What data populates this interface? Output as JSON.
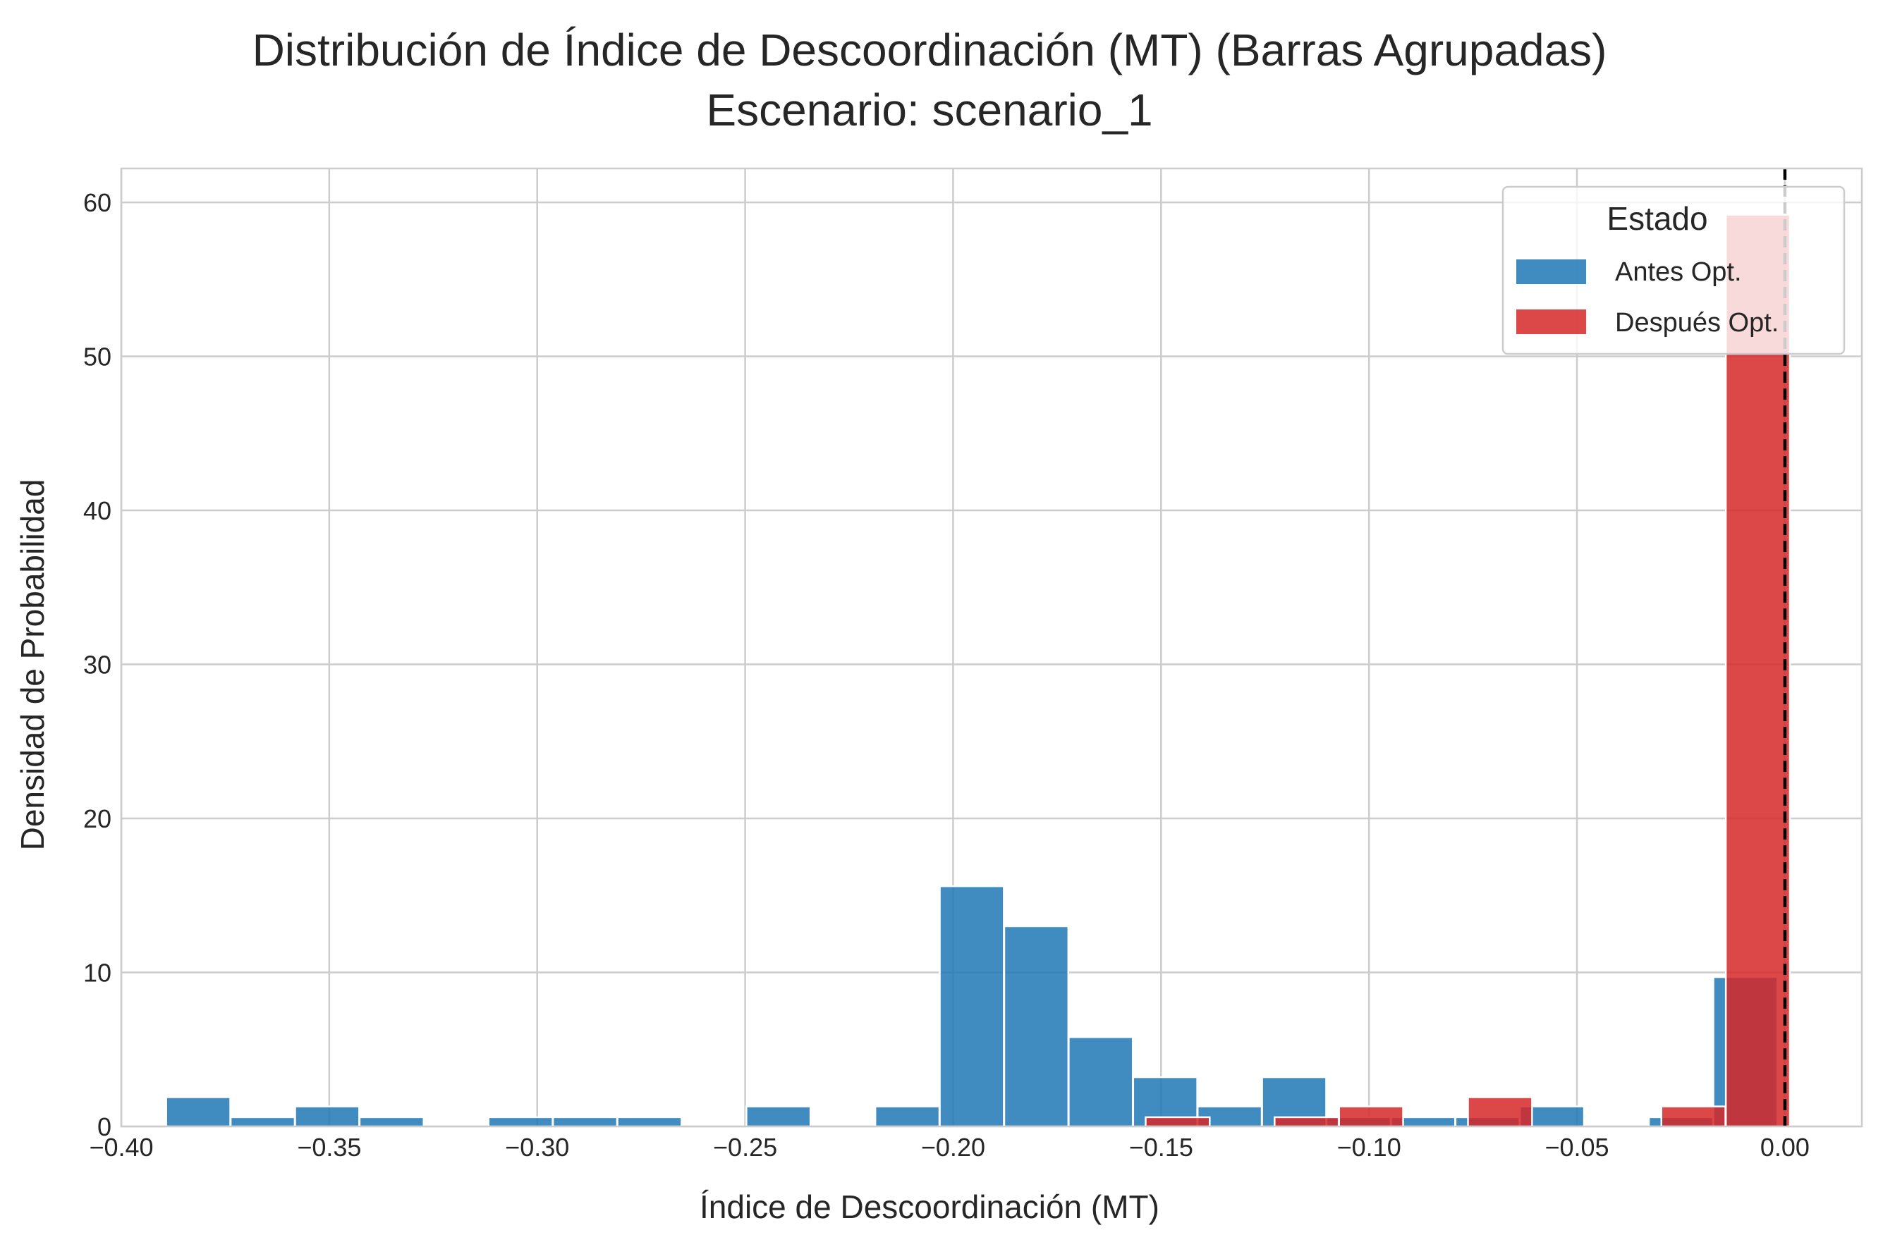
{
  "chart_data": {
    "type": "bar",
    "title": "Distribución de Índice de Descoordinación (MT) (Barras Agrupadas)",
    "subtitle": "Escenario: scenario_1",
    "xlabel": "Índice de Descoordinación (MT)",
    "ylabel": "Densidad de Probabilidad",
    "xlim": [
      -0.4,
      0.0185
    ],
    "ylim": [
      0,
      62.2
    ],
    "xticks": [
      -0.4,
      -0.35,
      -0.3,
      -0.25,
      -0.2,
      -0.15,
      -0.1,
      -0.05,
      0.0
    ],
    "xtick_labels": [
      "−0.40",
      "−0.35",
      "−0.30",
      "−0.25",
      "−0.20",
      "−0.15",
      "−0.10",
      "−0.05",
      "0.00"
    ],
    "yticks": [
      0,
      10,
      20,
      30,
      40,
      50,
      60
    ],
    "ytick_labels": [
      "0",
      "10",
      "20",
      "30",
      "40",
      "50",
      "60"
    ],
    "grid": true,
    "bin_width": 0.0154,
    "reference_line": {
      "x": 0.0,
      "style": "dashed",
      "color": "#000000"
    },
    "legend": {
      "title": "Estado",
      "position": "top-right"
    },
    "series": [
      {
        "name": "Antes Opt.",
        "color": "#1f77b4",
        "bins": [
          {
            "x": -0.3815,
            "y": 1.9
          },
          {
            "x": -0.366,
            "y": 0.6
          },
          {
            "x": -0.3505,
            "y": 1.3
          },
          {
            "x": -0.335,
            "y": 0.6
          },
          {
            "x": -0.304,
            "y": 0.6
          },
          {
            "x": -0.2885,
            "y": 0.6
          },
          {
            "x": -0.273,
            "y": 0.6
          },
          {
            "x": -0.242,
            "y": 1.3
          },
          {
            "x": -0.211,
            "y": 1.3
          },
          {
            "x": -0.1955,
            "y": 15.6
          },
          {
            "x": -0.18,
            "y": 13.0
          },
          {
            "x": -0.1645,
            "y": 5.8
          },
          {
            "x": -0.149,
            "y": 3.2
          },
          {
            "x": -0.1335,
            "y": 1.3
          },
          {
            "x": -0.118,
            "y": 3.2
          },
          {
            "x": -0.1025,
            "y": 0.6
          },
          {
            "x": -0.087,
            "y": 0.6
          },
          {
            "x": -0.0715,
            "y": 0.6
          },
          {
            "x": -0.056,
            "y": 1.3
          },
          {
            "x": -0.025,
            "y": 0.6
          },
          {
            "x": -0.0095,
            "y": 9.7
          }
        ]
      },
      {
        "name": "Después Opt.",
        "color": "#d62728",
        "bins": [
          {
            "x": -0.146,
            "y": 0.6
          },
          {
            "x": -0.115,
            "y": 0.6
          },
          {
            "x": -0.0995,
            "y": 1.3
          },
          {
            "x": -0.0685,
            "y": 1.9
          },
          {
            "x": -0.022,
            "y": 1.3
          },
          {
            "x": -0.0065,
            "y": 59.2
          }
        ]
      }
    ]
  }
}
